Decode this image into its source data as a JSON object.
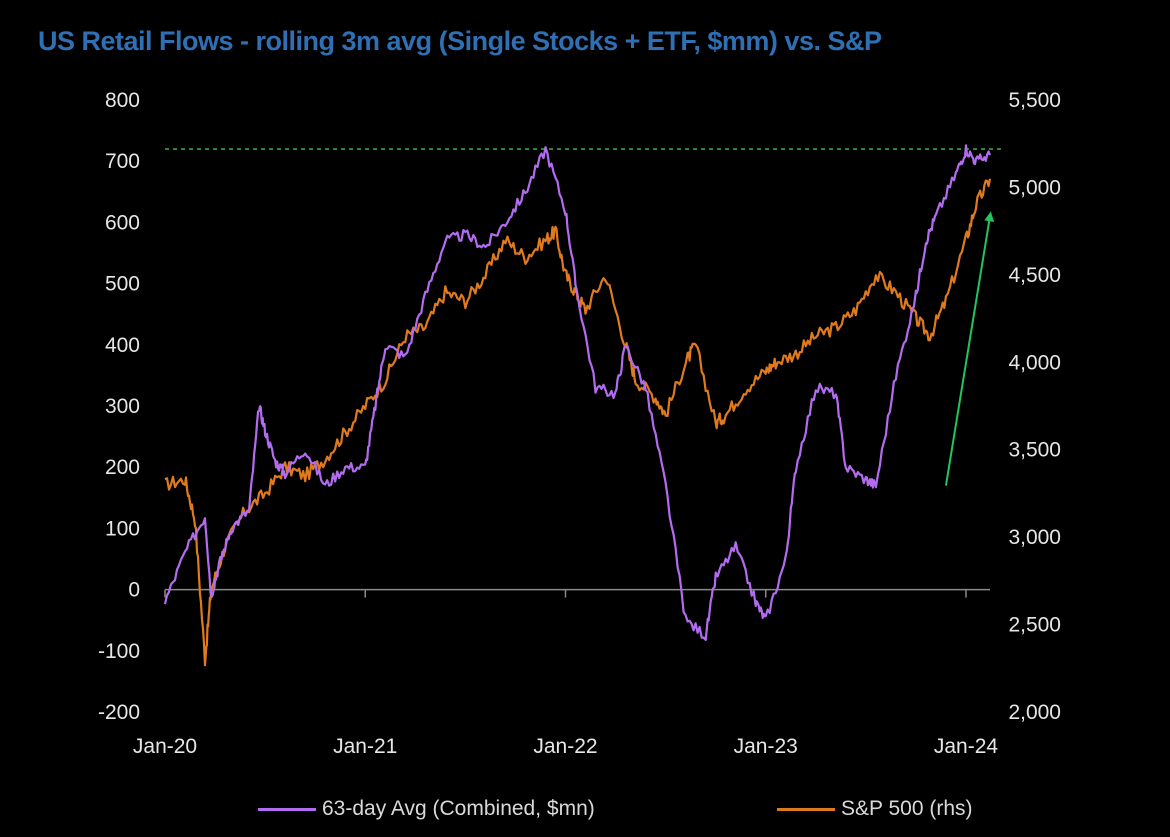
{
  "chart_data": {
    "type": "line",
    "title": "US Retail Flows - rolling 3m avg (Single Stocks + ETF, $mm) vs. S&P",
    "x_tick_labels": [
      "Jan-20",
      "Jan-21",
      "Jan-22",
      "Jan-23",
      "Jan-24"
    ],
    "x_range": [
      2020.0,
      2024.12
    ],
    "left_axis": {
      "ylim": [
        -200,
        800
      ],
      "tick_labels": [
        "800",
        "700",
        "600",
        "500",
        "400",
        "300",
        "200",
        "100",
        "0",
        "-100",
        "-200"
      ]
    },
    "right_axis": {
      "ylim": [
        2000,
        5500
      ],
      "tick_labels": [
        "5,500",
        "5,000",
        "4,500",
        "4,000",
        "3,500",
        "3,000",
        "2,500",
        "2,000"
      ]
    },
    "series": [
      {
        "name": "63-day Avg (Combined, $mn)",
        "axis": "left",
        "color": "#b36cf0",
        "x": [
          2020.0,
          2020.1,
          2020.2,
          2020.23,
          2020.27,
          2020.33,
          2020.42,
          2020.47,
          2020.5,
          2020.55,
          2020.6,
          2020.7,
          2020.8,
          2020.9,
          2021.0,
          2021.05,
          2021.1,
          2021.2,
          2021.3,
          2021.4,
          2021.5,
          2021.6,
          2021.7,
          2021.8,
          2021.9,
          2022.0,
          2022.05,
          2022.15,
          2022.25,
          2022.3,
          2022.4,
          2022.5,
          2022.6,
          2022.7,
          2022.75,
          2022.85,
          2022.95,
          2023.0,
          2023.1,
          2023.15,
          2023.25,
          2023.35,
          2023.4,
          2023.5,
          2023.55,
          2023.65,
          2023.75,
          2023.8,
          2023.85,
          2023.95,
          2024.0,
          2024.05,
          2024.12
        ],
        "y": [
          -20,
          60,
          120,
          -10,
          40,
          100,
          130,
          300,
          260,
          210,
          190,
          230,
          170,
          200,
          200,
          300,
          400,
          380,
          480,
          570,
          580,
          560,
          600,
          650,
          720,
          620,
          500,
          330,
          320,
          400,
          330,
          170,
          -50,
          -75,
          20,
          70,
          -20,
          -50,
          50,
          200,
          330,
          320,
          200,
          180,
          170,
          350,
          480,
          570,
          610,
          680,
          720,
          700,
          710
        ]
      },
      {
        "name": "S&P 500 (rhs)",
        "axis": "right",
        "color": "#e07a1f",
        "x": [
          2020.0,
          2020.1,
          2020.15,
          2020.2,
          2020.23,
          2020.3,
          2020.4,
          2020.5,
          2020.6,
          2020.7,
          2020.8,
          2020.9,
          2021.0,
          2021.1,
          2021.2,
          2021.3,
          2021.4,
          2021.5,
          2021.6,
          2021.7,
          2021.8,
          2021.9,
          2021.95,
          2022.0,
          2022.05,
          2022.1,
          2022.2,
          2022.3,
          2022.35,
          2022.45,
          2022.5,
          2022.6,
          2022.65,
          2022.75,
          2022.8,
          2022.9,
          2023.0,
          2023.05,
          2023.15,
          2023.25,
          2023.35,
          2023.45,
          2023.55,
          2023.65,
          2023.75,
          2023.82,
          2023.9,
          2024.0,
          2024.05,
          2024.12
        ],
        "y": [
          3300,
          3330,
          3100,
          2300,
          2700,
          2950,
          3150,
          3250,
          3400,
          3350,
          3450,
          3600,
          3750,
          3900,
          4150,
          4200,
          4400,
          4350,
          4500,
          4700,
          4600,
          4700,
          4750,
          4500,
          4400,
          4300,
          4500,
          4100,
          3900,
          3800,
          3700,
          4000,
          4100,
          3650,
          3700,
          3850,
          3950,
          4000,
          4050,
          4150,
          4200,
          4300,
          4500,
          4400,
          4250,
          4150,
          4350,
          4700,
          4900,
          5050
        ]
      }
    ],
    "annotations": {
      "previous_high_line": {
        "value": 720,
        "style": "dashed",
        "color": "#3fae49"
      },
      "trend_arrow": {
        "from": [
          2023.9,
          170
        ],
        "to": [
          2024.12,
          610
        ],
        "color": "#22c55e"
      }
    }
  },
  "legend": {
    "item1": "63-day Avg (Combined, $mn)",
    "item2": "S&P 500 (rhs)"
  }
}
